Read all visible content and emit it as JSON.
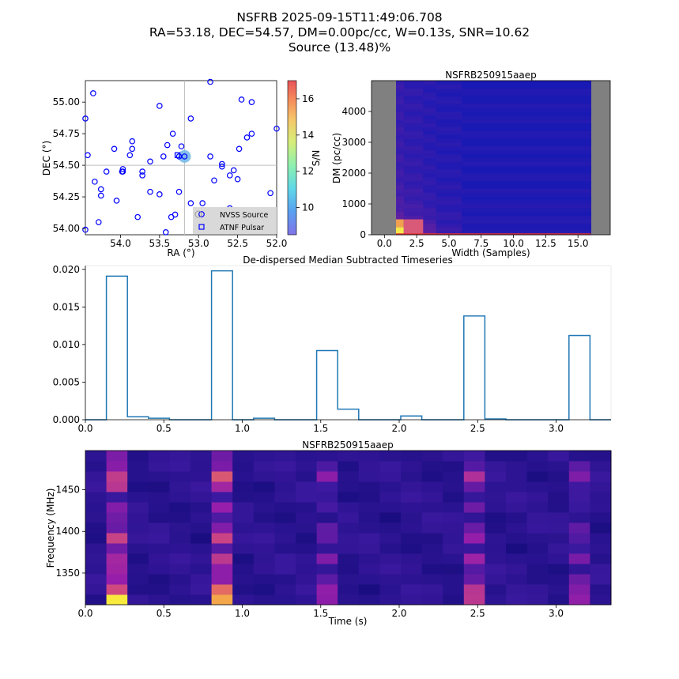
{
  "figure": {
    "title_lines": [
      "NSFRB 2025-09-15T11:49:06.708",
      "RA=53.18, DEC=54.57, DM=0.00pc/cc, W=0.13s, SNR=10.62",
      "Source (13.48)%"
    ]
  },
  "colors": {
    "nvss": "#0000ff",
    "candidate": "#6fb6e8",
    "crosshair": "#bfbfbf",
    "timeseries_line": "#1f77b4"
  },
  "chart_data": [
    {
      "id": "sky",
      "type": "scatter",
      "title": "",
      "xlabel": "RA ($^\\circ$)",
      "ylabel": "DEC ($^\\circ$)",
      "xlim": [
        54.45,
        52.0
      ],
      "ylim": [
        53.95,
        55.17
      ],
      "xticks": [
        54.0,
        53.5,
        53.0,
        52.5,
        52.0
      ],
      "xtick_labels": [
        "54.0",
        "53.5",
        "53.0",
        "52.5",
        "52.0"
      ],
      "yticks": [
        54.0,
        54.25,
        54.5,
        54.75,
        55.0
      ],
      "ytick_labels": [
        "54.00",
        "54.25",
        "54.50",
        "54.75",
        "55.00"
      ],
      "crosshair": {
        "ra": 53.18,
        "dec": 54.5
      },
      "candidate": {
        "ra": 53.18,
        "dec": 54.57
      },
      "nvss_points": [
        [
          54.35,
          55.07
        ],
        [
          54.45,
          54.87
        ],
        [
          54.42,
          54.58
        ],
        [
          54.33,
          54.37
        ],
        [
          54.25,
          54.31
        ],
        [
          54.25,
          54.26
        ],
        [
          54.18,
          54.45
        ],
        [
          54.28,
          54.05
        ],
        [
          54.45,
          53.99
        ],
        [
          54.08,
          54.63
        ],
        [
          54.05,
          54.22
        ],
        [
          53.97,
          54.47
        ],
        [
          53.97,
          54.45
        ],
        [
          53.88,
          54.58
        ],
        [
          53.85,
          54.69
        ],
        [
          53.85,
          54.63
        ],
        [
          53.78,
          54.09
        ],
        [
          53.72,
          54.42
        ],
        [
          53.72,
          54.45
        ],
        [
          53.62,
          54.53
        ],
        [
          53.62,
          54.29
        ],
        [
          53.5,
          54.97
        ],
        [
          53.5,
          54.27
        ],
        [
          53.45,
          54.57
        ],
        [
          53.42,
          53.97
        ],
        [
          53.4,
          54.66
        ],
        [
          53.33,
          54.75
        ],
        [
          53.35,
          54.09
        ],
        [
          53.3,
          54.11
        ],
        [
          53.25,
          54.29
        ],
        [
          53.25,
          54.57
        ],
        [
          53.22,
          54.65
        ],
        [
          53.18,
          54.57
        ],
        [
          53.1,
          54.87
        ],
        [
          53.1,
          54.2
        ],
        [
          52.95,
          54.2
        ],
        [
          52.85,
          54.57
        ],
        [
          52.8,
          54.38
        ],
        [
          52.85,
          54.03
        ],
        [
          52.85,
          55.16
        ],
        [
          52.7,
          54.51
        ],
        [
          52.7,
          54.49
        ],
        [
          52.6,
          54.16
        ],
        [
          52.6,
          54.42
        ],
        [
          52.55,
          54.46
        ],
        [
          52.52,
          54.14
        ],
        [
          52.5,
          54.1
        ],
        [
          52.5,
          54.39
        ],
        [
          52.48,
          54.63
        ],
        [
          52.45,
          55.02
        ],
        [
          52.38,
          54.72
        ],
        [
          52.32,
          54.75
        ],
        [
          52.32,
          55.0
        ],
        [
          52.08,
          54.28
        ],
        [
          52.0,
          54.79
        ],
        [
          53.98,
          54.45
        ]
      ],
      "pulsar_points": [
        [
          53.27,
          54.58
        ]
      ],
      "legend": [
        "NVSS Source",
        "ATNF Pulsar"
      ],
      "legend_loc": "lower-right",
      "colorbar": {
        "label": "S/N",
        "min": 8.5,
        "max": 17.0,
        "ticks": [
          10,
          12,
          14,
          16
        ],
        "tick_labels": [
          "10",
          "12",
          "14",
          "16"
        ]
      }
    },
    {
      "id": "dm_width",
      "type": "heatmap",
      "title": "NSFRB250915aaep",
      "xlabel": "Width (Samples)",
      "ylabel": "DM (pc/cc)",
      "xlim": [
        -1.0,
        17.5
      ],
      "ylim": [
        0,
        5000
      ],
      "xticks": [
        0.0,
        2.5,
        5.0,
        7.5,
        10.0,
        12.5,
        15.0
      ],
      "xtick_labels": [
        "0.0",
        "2.5",
        "5.0",
        "7.5",
        "10.0",
        "12.5",
        "15.0"
      ],
      "yticks": [
        0,
        1000,
        2000,
        3000,
        4000
      ],
      "ytick_labels": [
        "0",
        "1000",
        "2000",
        "3000",
        "4000"
      ],
      "masked_ranges": [
        [
          -1.0,
          0.9
        ],
        [
          16.0,
          17.5
        ]
      ],
      "width_bins": [
        [
          0.9,
          1.5
        ],
        [
          1.5,
          3.0
        ],
        [
          3.0,
          4.0
        ],
        [
          4.0,
          6.0
        ],
        [
          6.0,
          16.0
        ]
      ],
      "column_intensity": [
        0.55,
        0.4,
        0.28,
        0.2,
        0.08
      ],
      "hotspot": {
        "width": 1.0,
        "dm": 0,
        "value": 1.0
      }
    },
    {
      "id": "timeseries",
      "type": "line",
      "title": "De-dispersed Median Subtracted Timeseries",
      "xlabel": "",
      "ylabel": "",
      "xlim": [
        0.0,
        3.35
      ],
      "ylim": [
        0.0,
        0.0205
      ],
      "xticks": [
        0.0,
        0.5,
        1.0,
        1.5,
        2.0,
        2.5,
        3.0
      ],
      "xtick_labels": [
        "0.0",
        "0.5",
        "1.0",
        "1.5",
        "2.0",
        "2.5",
        "3.0"
      ],
      "yticks": [
        0.0,
        0.005,
        0.01,
        0.015,
        0.02
      ],
      "ytick_labels": [
        "0.000",
        "0.005",
        "0.010",
        "0.015",
        "0.020"
      ],
      "bin_edges": [
        0.0,
        0.134,
        0.268,
        0.402,
        0.536,
        0.67,
        0.804,
        0.938,
        1.072,
        1.206,
        1.34,
        1.474,
        1.608,
        1.742,
        1.876,
        2.01,
        2.144,
        2.278,
        2.412,
        2.546,
        2.68,
        2.814,
        2.948,
        3.082,
        3.216,
        3.35
      ],
      "values": [
        0.0,
        0.0191,
        0.0004,
        0.0002,
        0.0,
        0.0,
        0.0198,
        0.0,
        0.0002,
        0.0,
        0.0,
        0.0092,
        0.0014,
        0.0,
        0.0,
        0.0005,
        0.0,
        0.0,
        0.0138,
        0.0001,
        0.0,
        0.0,
        0.0,
        0.0112,
        0.0
      ]
    },
    {
      "id": "dynamic_spectrum",
      "type": "heatmap",
      "title": "NSFRB250915aaep",
      "xlabel": "Time (s)",
      "ylabel": "Frequency (MHz)",
      "xlim": [
        0.0,
        3.35
      ],
      "ylim": [
        1312,
        1497
      ],
      "xticks": [
        0.0,
        0.5,
        1.0,
        1.5,
        2.0,
        2.5,
        3.0
      ],
      "xtick_labels": [
        "0.0",
        "0.5",
        "1.0",
        "1.5",
        "2.0",
        "2.5",
        "3.0"
      ],
      "yticks": [
        1350,
        1400,
        1450
      ],
      "ytick_labels": [
        "1350",
        "1400",
        "1450"
      ],
      "n_time": 25,
      "n_freq": 15,
      "burst_columns": [
        1,
        6,
        11,
        18,
        23
      ],
      "burst_profile": [
        0.92,
        0.72,
        0.55,
        0.45,
        0.6,
        0.4,
        0.62,
        0.45,
        0.35,
        0.42,
        0.3,
        0.55,
        0.68,
        0.5,
        0.35
      ],
      "burst_scale": [
        1.0,
        1.0,
        0.6,
        0.75,
        0.6
      ]
    }
  ]
}
